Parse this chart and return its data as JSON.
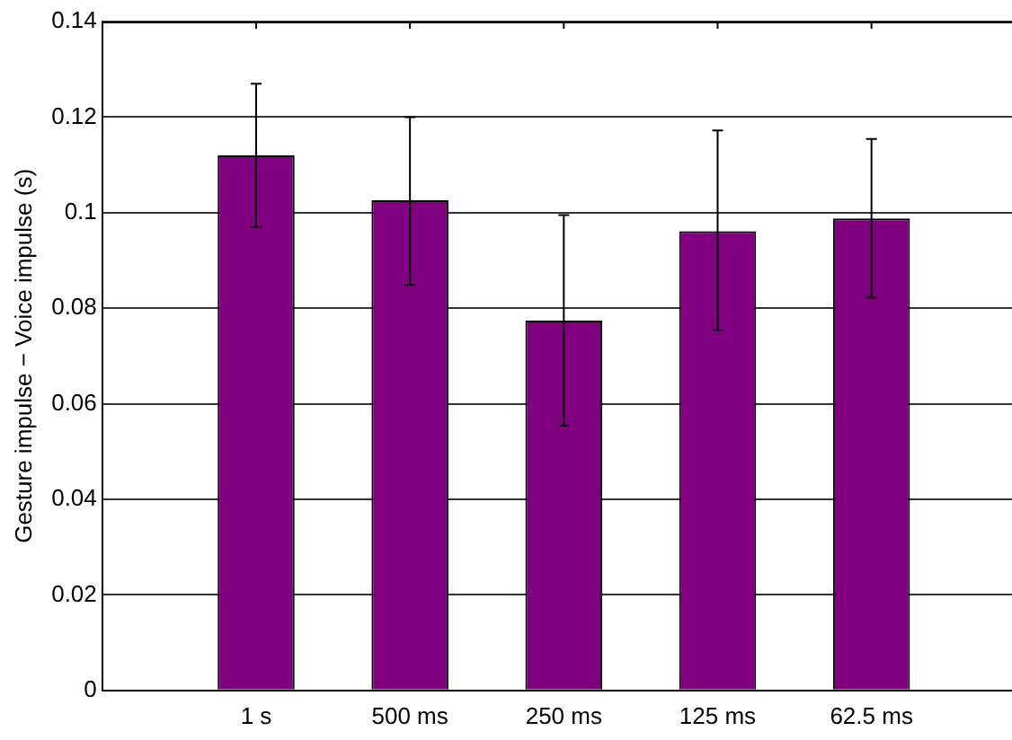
{
  "chart_data": {
    "type": "bar",
    "ylabel": "Gesture impulse − Voice impulse (s)",
    "categories": [
      "1 s",
      "500 ms",
      "250 ms",
      "125 ms",
      "62.5 ms"
    ],
    "values": [
      0.112,
      0.1026,
      0.0774,
      0.0961,
      0.0988
    ],
    "color": "#800080",
    "errors": [
      [
        0.097,
        0.127
      ],
      [
        0.0849,
        0.12
      ],
      [
        0.0554,
        0.0995
      ],
      [
        0.0754,
        0.1172
      ],
      [
        0.0822,
        0.1154
      ]
    ],
    "ylim": [
      0,
      0.14
    ],
    "yticks": [
      0,
      0.02,
      0.04,
      0.06,
      0.08,
      {
        "value": 0.1,
        "label": "0.1"
      },
      0.12,
      0.14
    ],
    "grid": "y"
  }
}
